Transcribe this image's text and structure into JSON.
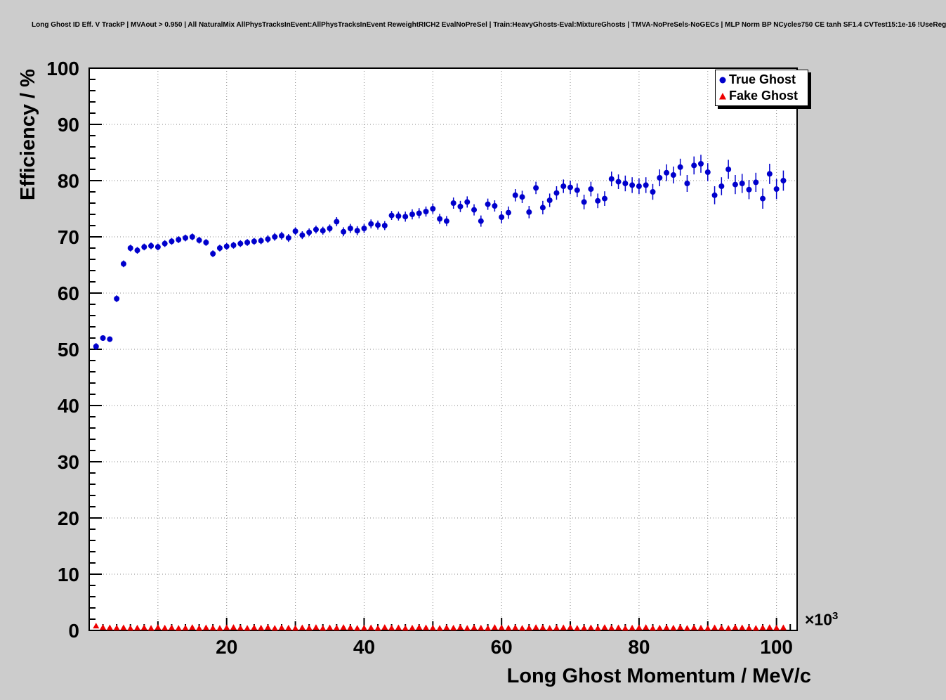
{
  "page": {
    "background": "#cccccc",
    "frame_background": "#ffffff",
    "grid_color": "#888888",
    "axis_color": "#000000"
  },
  "title": "Long Ghost ID Eff. V TrackP | MVAout > 0.950 | All NaturalMix AllPhysTracksInEvent:AllPhysTracksInEvent ReweightRICH2 EvalNoPreSel | Train:HeavyGhosts-Eval:MixtureGhosts | TMVA-NoPreSels-NoGECs | MLP Norm BP NCycles750 CE tanh SF1.4 CVTest15:1e-16 !UseReg",
  "chart_data": {
    "type": "scatter",
    "title": "Long Ghost ID Eff. V TrackP",
    "xlabel": "Long Ghost Momentum / MeV/c",
    "ylabel": "Efficiency / %",
    "x_multiplier": {
      "base": "×10",
      "exponent": "3"
    },
    "xlim": [
      0,
      103
    ],
    "ylim": [
      0,
      100
    ],
    "x_ticks": [
      20,
      40,
      60,
      80,
      100
    ],
    "y_ticks": [
      0,
      10,
      20,
      30,
      40,
      50,
      60,
      70,
      80,
      90,
      100
    ],
    "grid": true,
    "legend": {
      "position": "top-right",
      "entries": [
        {
          "label": "True Ghost",
          "color": "#0000cc",
          "marker": "circle"
        },
        {
          "label": "Fake Ghost",
          "color": "#ee0000",
          "marker": "triangle"
        }
      ]
    },
    "series": [
      {
        "name": "True Ghost",
        "color": "#0000cc",
        "marker": "circle",
        "points": [
          [
            1,
            50.5,
            0.6
          ],
          [
            2,
            52.0,
            0.5
          ],
          [
            3,
            51.8,
            0.5
          ],
          [
            4,
            59.0,
            0.6
          ],
          [
            5,
            65.2,
            0.6
          ],
          [
            6,
            68.0,
            0.6
          ],
          [
            7,
            67.6,
            0.6
          ],
          [
            8,
            68.2,
            0.6
          ],
          [
            9,
            68.4,
            0.6
          ],
          [
            10,
            68.2,
            0.6
          ],
          [
            11,
            68.8,
            0.6
          ],
          [
            12,
            69.2,
            0.6
          ],
          [
            13,
            69.5,
            0.6
          ],
          [
            14,
            69.8,
            0.6
          ],
          [
            15,
            70.0,
            0.6
          ],
          [
            16,
            69.4,
            0.6
          ],
          [
            17,
            69.0,
            0.6
          ],
          [
            18,
            67.0,
            0.6
          ],
          [
            19,
            68.0,
            0.6
          ],
          [
            20,
            68.3,
            0.6
          ],
          [
            21,
            68.5,
            0.6
          ],
          [
            22,
            68.8,
            0.6
          ],
          [
            23,
            69.0,
            0.6
          ],
          [
            24,
            69.2,
            0.6
          ],
          [
            25,
            69.3,
            0.6
          ],
          [
            26,
            69.6,
            0.7
          ],
          [
            27,
            70.0,
            0.7
          ],
          [
            28,
            70.2,
            0.7
          ],
          [
            29,
            69.8,
            0.7
          ],
          [
            30,
            71.0,
            0.7
          ],
          [
            31,
            70.3,
            0.7
          ],
          [
            32,
            70.8,
            0.7
          ],
          [
            33,
            71.3,
            0.7
          ],
          [
            34,
            71.1,
            0.7
          ],
          [
            35,
            71.5,
            0.7
          ],
          [
            36,
            72.7,
            0.8
          ],
          [
            37,
            70.9,
            0.8
          ],
          [
            38,
            71.5,
            0.8
          ],
          [
            39,
            71.1,
            0.8
          ],
          [
            40,
            71.5,
            0.8
          ],
          [
            41,
            72.3,
            0.8
          ],
          [
            42,
            72.1,
            0.8
          ],
          [
            43,
            72.0,
            0.8
          ],
          [
            44,
            73.8,
            0.8
          ],
          [
            45,
            73.7,
            0.8
          ],
          [
            46,
            73.6,
            0.9
          ],
          [
            47,
            74.0,
            0.9
          ],
          [
            48,
            74.2,
            0.9
          ],
          [
            49,
            74.5,
            0.9
          ],
          [
            50,
            75.0,
            0.9
          ],
          [
            51,
            73.2,
            0.9
          ],
          [
            52,
            72.8,
            0.9
          ],
          [
            53,
            76.0,
            1.0
          ],
          [
            54,
            75.4,
            1.0
          ],
          [
            55,
            76.2,
            1.0
          ],
          [
            56,
            74.8,
            1.0
          ],
          [
            57,
            72.8,
            1.0
          ],
          [
            58,
            75.8,
            1.0
          ],
          [
            59,
            75.5,
            1.0
          ],
          [
            60,
            73.5,
            1.1
          ],
          [
            61,
            74.3,
            1.1
          ],
          [
            62,
            77.4,
            1.1
          ],
          [
            63,
            77.1,
            1.1
          ],
          [
            64,
            74.4,
            1.1
          ],
          [
            65,
            78.7,
            1.1
          ],
          [
            66,
            75.2,
            1.2
          ],
          [
            67,
            76.5,
            1.2
          ],
          [
            68,
            77.8,
            1.2
          ],
          [
            69,
            79.0,
            1.2
          ],
          [
            70,
            78.8,
            1.2
          ],
          [
            71,
            78.3,
            1.2
          ],
          [
            72,
            76.2,
            1.3
          ],
          [
            73,
            78.5,
            1.3
          ],
          [
            74,
            76.4,
            1.3
          ],
          [
            75,
            76.8,
            1.3
          ],
          [
            76,
            80.3,
            1.3
          ],
          [
            77,
            79.8,
            1.3
          ],
          [
            78,
            79.5,
            1.4
          ],
          [
            79,
            79.2,
            1.4
          ],
          [
            80,
            79.0,
            1.4
          ],
          [
            81,
            79.2,
            1.4
          ],
          [
            82,
            78.0,
            1.4
          ],
          [
            83,
            80.5,
            1.5
          ],
          [
            84,
            81.4,
            1.5
          ],
          [
            85,
            81.0,
            1.5
          ],
          [
            86,
            82.4,
            1.5
          ],
          [
            87,
            79.5,
            1.5
          ],
          [
            88,
            82.7,
            1.6
          ],
          [
            89,
            83.0,
            1.6
          ],
          [
            90,
            81.5,
            1.6
          ],
          [
            91,
            77.4,
            1.6
          ],
          [
            92,
            79.0,
            1.6
          ],
          [
            93,
            82.0,
            1.7
          ],
          [
            94,
            79.3,
            1.7
          ],
          [
            95,
            79.5,
            1.7
          ],
          [
            96,
            78.4,
            1.7
          ],
          [
            97,
            79.7,
            1.7
          ],
          [
            98,
            76.8,
            1.8
          ],
          [
            99,
            81.2,
            1.8
          ],
          [
            100,
            78.5,
            1.8
          ],
          [
            101,
            80.0,
            1.8
          ]
        ]
      },
      {
        "name": "Fake Ghost",
        "color": "#ee0000",
        "marker": "triangle",
        "points": [
          [
            1,
            0.8,
            0.1
          ],
          [
            2,
            0.55,
            0.1
          ],
          [
            3,
            0.5,
            0.1
          ],
          [
            4,
            0.45,
            0.1
          ],
          [
            5,
            0.5,
            0.1
          ],
          [
            6,
            0.4,
            0.1
          ],
          [
            7,
            0.45,
            0.1
          ],
          [
            8,
            0.5,
            0.1
          ],
          [
            9,
            0.4,
            0.1
          ],
          [
            10,
            0.55,
            0.1
          ],
          [
            11,
            0.45,
            0.1
          ],
          [
            12,
            0.5,
            0.1
          ],
          [
            13,
            0.4,
            0.1
          ],
          [
            14,
            0.45,
            0.1
          ],
          [
            15,
            0.55,
            0.1
          ],
          [
            16,
            0.4,
            0.1
          ],
          [
            17,
            0.5,
            0.1
          ],
          [
            18,
            0.45,
            0.1
          ],
          [
            19,
            0.4,
            0.1
          ],
          [
            20,
            0.5,
            0.1
          ],
          [
            21,
            0.55,
            0.1
          ],
          [
            22,
            0.45,
            0.1
          ],
          [
            23,
            0.4,
            0.1
          ],
          [
            24,
            0.5,
            0.1
          ],
          [
            25,
            0.45,
            0.1
          ],
          [
            26,
            0.55,
            0.1
          ],
          [
            27,
            0.4,
            0.1
          ],
          [
            28,
            0.5,
            0.1
          ],
          [
            29,
            0.45,
            0.1
          ],
          [
            30,
            0.4,
            0.1
          ],
          [
            31,
            0.5,
            0.1
          ],
          [
            32,
            0.45,
            0.1
          ],
          [
            33,
            0.55,
            0.1
          ],
          [
            34,
            0.4,
            0.1
          ],
          [
            35,
            0.5,
            0.1
          ],
          [
            36,
            0.45,
            0.1
          ],
          [
            37,
            0.55,
            0.1
          ],
          [
            38,
            0.5,
            0.1
          ],
          [
            39,
            0.4,
            0.1
          ],
          [
            40,
            0.45,
            0.1
          ],
          [
            41,
            0.5,
            0.1
          ],
          [
            42,
            0.4,
            0.1
          ],
          [
            43,
            0.55,
            0.1
          ],
          [
            44,
            0.45,
            0.1
          ],
          [
            45,
            0.5,
            0.1
          ],
          [
            46,
            0.4,
            0.1
          ],
          [
            47,
            0.45,
            0.1
          ],
          [
            48,
            0.55,
            0.1
          ],
          [
            49,
            0.5,
            0.1
          ],
          [
            50,
            0.45,
            0.1
          ],
          [
            51,
            0.4,
            0.1
          ],
          [
            52,
            0.5,
            0.1
          ],
          [
            53,
            0.45,
            0.1
          ],
          [
            54,
            0.55,
            0.1
          ],
          [
            55,
            0.4,
            0.1
          ],
          [
            56,
            0.5,
            0.1
          ],
          [
            57,
            0.45,
            0.1
          ],
          [
            58,
            0.4,
            0.1
          ],
          [
            59,
            0.55,
            0.1
          ],
          [
            60,
            0.5,
            0.1
          ],
          [
            61,
            0.45,
            0.1
          ],
          [
            62,
            0.5,
            0.1
          ],
          [
            63,
            0.4,
            0.1
          ],
          [
            64,
            0.45,
            0.1
          ],
          [
            65,
            0.55,
            0.1
          ],
          [
            66,
            0.5,
            0.1
          ],
          [
            67,
            0.4,
            0.1
          ],
          [
            68,
            0.45,
            0.1
          ],
          [
            69,
            0.5,
            0.1
          ],
          [
            70,
            0.55,
            0.1
          ],
          [
            71,
            0.4,
            0.1
          ],
          [
            72,
            0.45,
            0.1
          ],
          [
            73,
            0.5,
            0.1
          ],
          [
            74,
            0.4,
            0.1
          ],
          [
            75,
            0.55,
            0.1
          ],
          [
            76,
            0.45,
            0.1
          ],
          [
            77,
            0.5,
            0.1
          ],
          [
            78,
            0.4,
            0.1
          ],
          [
            79,
            0.45,
            0.1
          ],
          [
            80,
            0.5,
            0.1
          ],
          [
            81,
            0.55,
            0.1
          ],
          [
            82,
            0.4,
            0.1
          ],
          [
            83,
            0.45,
            0.1
          ],
          [
            84,
            0.5,
            0.1
          ],
          [
            85,
            0.45,
            0.1
          ],
          [
            86,
            0.55,
            0.1
          ],
          [
            87,
            0.4,
            0.1
          ],
          [
            88,
            0.5,
            0.1
          ],
          [
            89,
            0.45,
            0.1
          ],
          [
            90,
            0.4,
            0.1
          ],
          [
            91,
            0.5,
            0.1
          ],
          [
            92,
            0.45,
            0.1
          ],
          [
            93,
            0.4,
            0.1
          ],
          [
            94,
            0.55,
            0.1
          ],
          [
            95,
            0.5,
            0.1
          ],
          [
            96,
            0.45,
            0.1
          ],
          [
            97,
            0.4,
            0.1
          ],
          [
            98,
            0.5,
            0.1
          ],
          [
            99,
            0.55,
            0.1
          ],
          [
            100,
            0.45,
            0.1
          ],
          [
            101,
            0.5,
            0.1
          ]
        ]
      }
    ]
  }
}
